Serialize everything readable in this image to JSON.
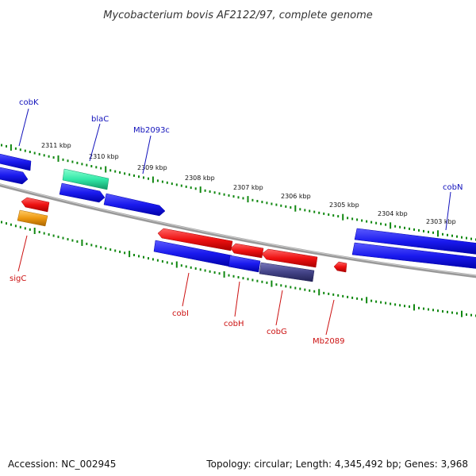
{
  "title": "Mycobacterium bovis AF2122/97, complete genome",
  "accession": "Accession: NC_002945",
  "stats": "Topology: circular; Length: 4,345,492 bp; Genes: 3,968",
  "colors": {
    "forward_gene": "#1a1aee",
    "reverse_gene": "#ee1111",
    "rna_gene": "#33e8a8",
    "pseudo_gene": "#444488",
    "other_gene": "#ee9911",
    "backbone": "#888888",
    "tick": "#118811",
    "label_forward": "#1111bb",
    "label_reverse": "#cc1111"
  },
  "tick_labels": [
    "2311 kbp",
    "2310 kbp",
    "2309 kbp",
    "2308 kbp",
    "2307 kbp",
    "2306 kbp",
    "2305 kbp",
    "2304 kbp",
    "2303 kbp"
  ],
  "forward_labels": [
    "cobK",
    "blaC",
    "Mb2093c",
    "cobN"
  ],
  "reverse_labels": [
    "sigC",
    "cobI",
    "cobH",
    "cobG",
    "Mb2089"
  ]
}
